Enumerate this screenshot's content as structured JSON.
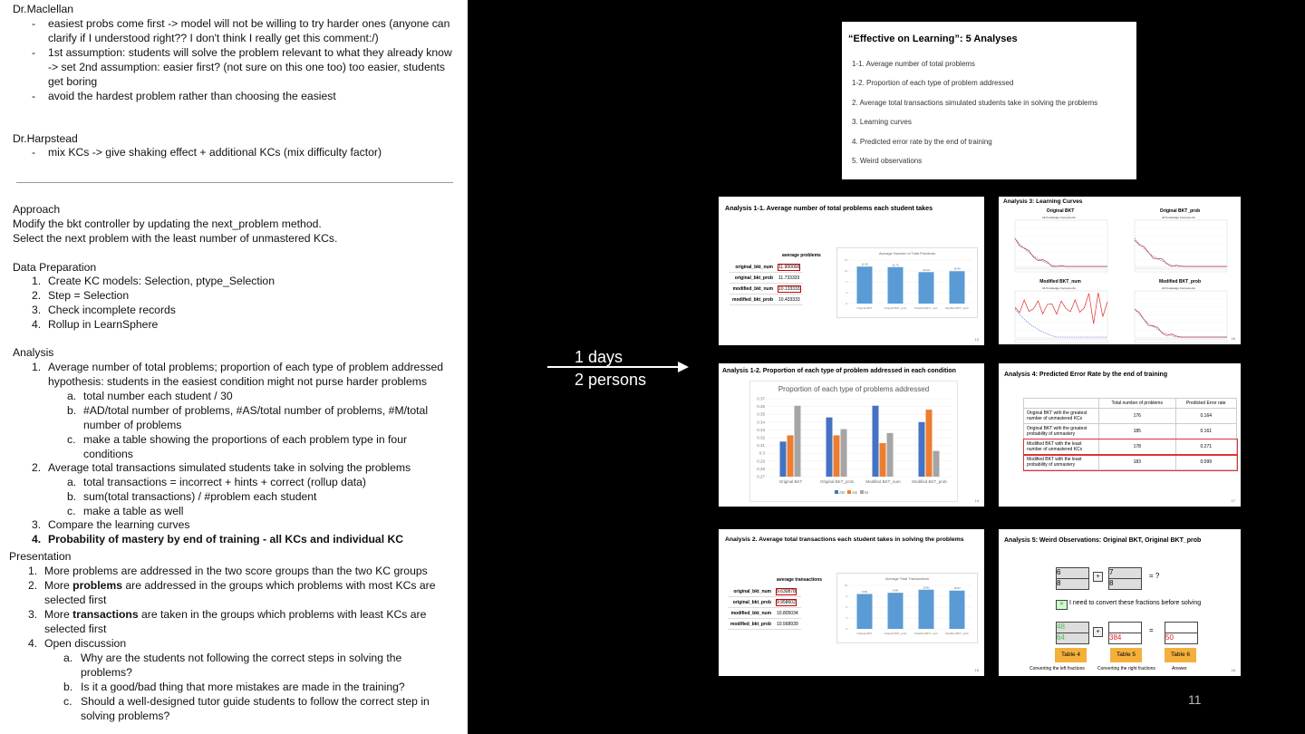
{
  "notes": {
    "lines": [
      "Dr.Maclellan",
      "easiest probs come first -> model will not be willing to try harder ones (anyone can",
      "clarify if I understood right?? I don't think I really get this comment:/)",
      "1st assumption: students will solve the problem relevant to what they already know",
      "-> set 2nd assumption: easier first? (not sure on this one too) too easier, students",
      "get boring",
      "avoid the hardest problem rather than choosing the easiest",
      "Dr.Harpstead",
      "mix KCs -> give shaking effect + additional KCs (mix difficulty factor)",
      "Approach",
      "Modify the bkt controller by updating the next_problem method.",
      "Select the next problem with the least number of unmastered KCs.",
      "Data Preparation",
      "Create KC models: Selection, ptype_Selection",
      "Step = Selection",
      "Check incomplete records",
      "Rollup in LearnSphere",
      "Analysis",
      "Average number of total problems; proportion of each type of problem addressed",
      "hypothesis: students in the easiest condition might not purse harder problems",
      "total number each student / 30",
      "#AD/total number of problems, #AS/total number of problems, #M/total",
      "number of problems",
      "make a table showing the proportions of each problem type in four",
      "conditions",
      "Average total transactions simulated students take in solving the problems",
      "total transactions =  incorrect + hints + correct (rollup data)",
      "sum(total transactions) / #problem each student",
      "make a table as well",
      "Compare the learning curves",
      "Probability of mastery by end of training - all KCs and individual KC",
      "Presentation",
      "More problems are addressed in the two score groups than the two KC groups",
      "More ",
      "problems",
      " are addressed in the groups which problems with most KCs are",
      "selected first",
      "More ",
      "transactions",
      " are taken in the groups which problems with least KCs are",
      "selected first",
      "Open discussion",
      "Why are the students not following the correct steps in solving the",
      "problems?",
      "Is it a good/bad thing that more mistakes are made in the training?",
      "Should a well-designed tutor guide students to follow the correct step in",
      "solving problems?"
    ],
    "markers": [
      "-",
      "-",
      "-",
      "-",
      "1.",
      "2.",
      "3.",
      "4.",
      "a.",
      "b.",
      "c."
    ]
  },
  "arrow": {
    "line1": "1 days",
    "line2": "2 persons"
  },
  "overview": {
    "title": "“Effective on Learning”: 5 Analyses",
    "items": [
      "1-1. Average number of total problems",
      "1-2. Proportion of each type of problem addressed",
      "2.    Average total transactions simulated students take in solving the problems",
      "3.    Learning curves",
      "4.    Predicted error rate by the end of training",
      "5.    Weird observations"
    ]
  },
  "s11": {
    "title": "Analysis 1-1. Average number of total problems each student takes",
    "table_header": "average problems",
    "rows": [
      {
        "k": "original_bkt_num",
        "v": "11.900000"
      },
      {
        "k": "original_bkt_prob",
        "v": "11.733333"
      },
      {
        "k": "modified_bkt_num",
        "v": "10.133333"
      },
      {
        "k": "modified_bkt_prob",
        "v": "10.433333"
      }
    ],
    "chart_title": "Average Number of Total Problems",
    "page": "13"
  },
  "s12": {
    "title": "Analysis 1-2. Proportion of each type of problem addressed in each condition",
    "chart_title": "Proportion of each type of problems addressed",
    "page": "14"
  },
  "s2": {
    "title": "Analysis 2. Average total transactions each student takes in solving the problems",
    "table_header": "average transactions",
    "rows": [
      {
        "k": "original_bkt_num",
        "v": "9.630878"
      },
      {
        "k": "original_bkt_prob",
        "v": "9.958602"
      },
      {
        "k": "modified_bkt_num",
        "v": "10.805034"
      },
      {
        "k": "modified_bkt_prob",
        "v": "10.568939"
      }
    ],
    "chart_title": "Average Total Transactions",
    "page": "15"
  },
  "s3": {
    "title": "Analysis 3:  Learning Curves",
    "panels": [
      "Original BKT",
      "Original BKT_prob",
      "Modified BKT_num",
      "Modified BKT_prob"
    ],
    "sub": "All Knowledge Components",
    "page": "16"
  },
  "s4": {
    "title": "Analysis 4:  Predicted Error Rate by the end of training",
    "headers": [
      "",
      "Total number of problems",
      "Predicted Error rate"
    ],
    "rows": [
      [
        "Original BKT with the greatest number of unmastered KCs",
        "176",
        "0.164"
      ],
      [
        "Original BKT with the greatest probability of unmastery",
        "185",
        "0.161"
      ],
      [
        "Modified BKT with the least number of unmastered KCs",
        "178",
        "0.271"
      ],
      [
        "Modified BKT with the least probability of unmastery",
        "183",
        "0.099"
      ]
    ],
    "page": "17"
  },
  "s5": {
    "title": "Analysis 5:  Weird Observations: Original BKT, Original BKT_prob",
    "f1": [
      "6",
      "8"
    ],
    "f2": [
      "7",
      "8"
    ],
    "q": "= ?",
    "note": "I need to convert these fractions before solving",
    "a1": [
      "48",
      "64"
    ],
    "a2": [
      "",
      "384"
    ],
    "a3": [
      "",
      "50"
    ],
    "buttons": [
      "Table 4",
      "Table 5",
      "Table 6"
    ],
    "captions": [
      "Converting the left fractions",
      "Converting the right fractions",
      "Answer"
    ],
    "page": "18"
  },
  "chart_data": [
    {
      "type": "bar",
      "title": "Average Number of Total Problems",
      "categories": [
        "Original BKT",
        "Original BKT_prob",
        "Modified BKT_num",
        "Modified BKT_prob"
      ],
      "values": [
        11.9,
        11.73,
        10.13,
        10.43
      ],
      "ylim": [
        0,
        14
      ],
      "color": "#5b9bd5"
    },
    {
      "type": "bar",
      "title": "Proportion of each type of problems addressed",
      "categories": [
        "Original BKT",
        "Original BKT_prob",
        "Modified BKT_num",
        "Modified BKT_prob"
      ],
      "series": [
        {
          "name": "AD",
          "values": [
            0.315,
            0.346,
            0.361,
            0.34
          ],
          "color": "#4472c4"
        },
        {
          "name": "AS",
          "values": [
            0.323,
            0.323,
            0.313,
            0.356
          ],
          "color": "#ed7d31"
        },
        {
          "name": "M",
          "values": [
            0.361,
            0.331,
            0.326,
            0.303
          ],
          "color": "#a5a5a5"
        }
      ],
      "ylim": [
        0.27,
        0.37
      ],
      "yticks": [
        "0.37",
        "0.36",
        "0.35",
        "0.34",
        "0.33",
        "0.32",
        "0.31",
        "0.3",
        "0.29",
        "0.28",
        "0.27"
      ]
    },
    {
      "type": "bar",
      "title": "Average Total Transactions",
      "categories": [
        "Original BKT",
        "Original BKT_prob",
        "Modified BKT_num",
        "Modified BKT_prob"
      ],
      "values": [
        9.63,
        9.96,
        10.81,
        10.57
      ],
      "ylim": [
        0,
        12
      ],
      "color": "#5b9bd5"
    }
  ],
  "slide_number": "11"
}
